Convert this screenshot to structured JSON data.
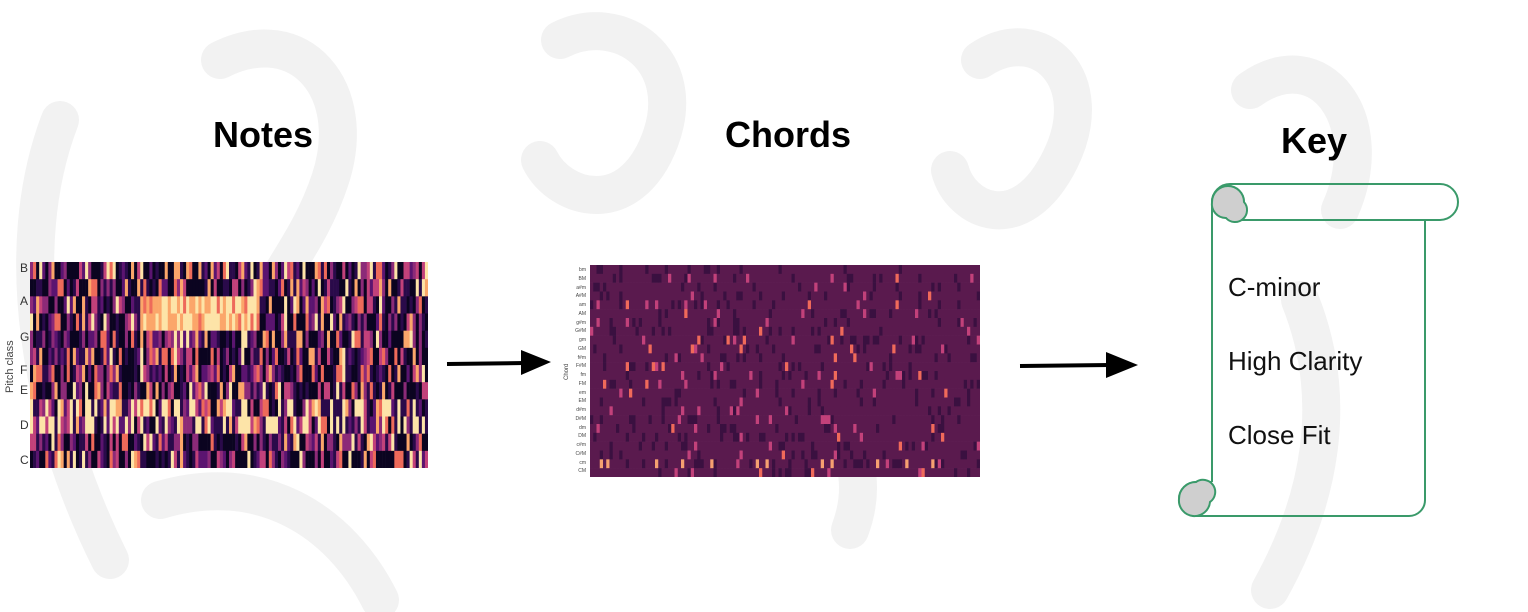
{
  "stages": {
    "notes": {
      "title": "Notes",
      "ylabel": "Pitch class",
      "pitch_labels": [
        "B",
        "A",
        "G",
        "F",
        "E",
        "D",
        "C"
      ]
    },
    "chords": {
      "title": "Chords",
      "ylabel": "Chord",
      "chord_labels": [
        "bm",
        "BM",
        "a#m",
        "A#M",
        "am",
        "AM",
        "g#m",
        "G#M",
        "gm",
        "GM",
        "f#m",
        "F#M",
        "fm",
        "FM",
        "em",
        "EM",
        "d#m",
        "D#M",
        "dm",
        "DM",
        "c#m",
        "C#M",
        "cm",
        "CM"
      ]
    },
    "key": {
      "title": "Key",
      "lines": [
        "C-minor",
        "High Clarity",
        "Close Fit"
      ]
    }
  },
  "colors": {
    "scroll_outline": "#3a9a6a",
    "scroll_curl": "#cfcfcf",
    "arrow": "#000000"
  }
}
